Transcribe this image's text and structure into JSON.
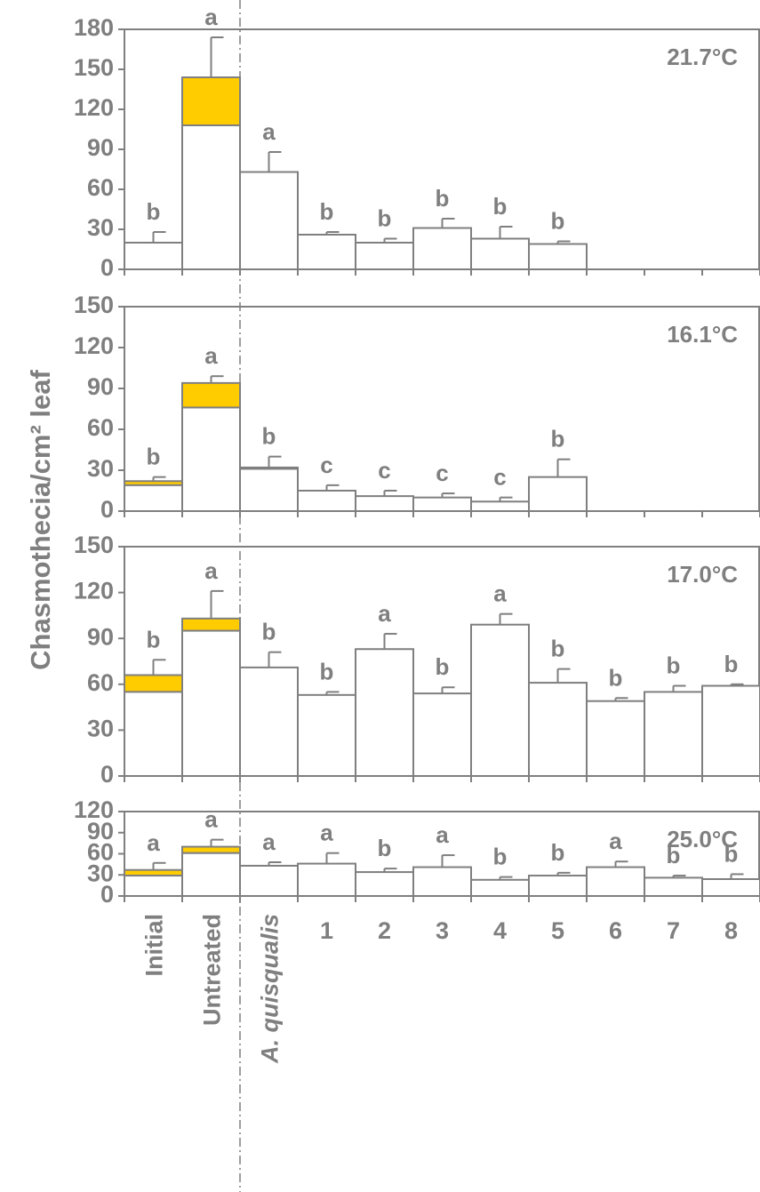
{
  "chart_data": {
    "type": "bar",
    "ylabel": "Chasmothecia/cm² leaf",
    "categories": [
      "Initial",
      "Untreated",
      "A. quisqualis",
      "1",
      "2",
      "3",
      "4",
      "5",
      "6",
      "7",
      "8"
    ],
    "colors": {
      "bar_fill": "#ffffff",
      "highlight_fill": "#ffcc00",
      "stroke": "#7f7f7f",
      "text": "#7f7f7f"
    },
    "panels": [
      {
        "label": "21.7°C",
        "ylim": [
          0,
          180
        ],
        "yticks": [
          "0",
          "30",
          "60",
          "90",
          "120",
          "150",
          "180"
        ],
        "values": [
          20,
          108,
          73,
          26,
          20,
          31,
          23,
          19,
          null,
          null,
          null
        ],
        "highlight_top": [
          null,
          144,
          null,
          null,
          null,
          null,
          null,
          null,
          null,
          null,
          null
        ],
        "errors": [
          8,
          30,
          15,
          2,
          3,
          7,
          9,
          2,
          null,
          null,
          null
        ],
        "letters": [
          "b",
          "a",
          "a",
          "b",
          "b",
          "b",
          "b",
          "b",
          "",
          "",
          ""
        ]
      },
      {
        "label": "16.1°C",
        "ylim": [
          0,
          150
        ],
        "yticks": [
          "0",
          "30",
          "60",
          "90",
          "120",
          "150"
        ],
        "values": [
          19,
          76,
          31,
          15,
          11,
          10,
          7,
          25,
          null,
          null,
          null
        ],
        "highlight_top": [
          22,
          94,
          32,
          null,
          null,
          null,
          null,
          null,
          null,
          null,
          null
        ],
        "errors": [
          3,
          5,
          8,
          4,
          4,
          3,
          3,
          13,
          null,
          null,
          null
        ],
        "letters": [
          "b",
          "a",
          "b",
          "c",
          "c",
          "c",
          "c",
          "b",
          "",
          "",
          ""
        ]
      },
      {
        "label": "17.0°C",
        "ylim": [
          0,
          150
        ],
        "yticks": [
          "0",
          "30",
          "60",
          "90",
          "120",
          "150"
        ],
        "values": [
          55,
          95,
          71,
          53,
          83,
          54,
          99,
          61,
          49,
          55,
          59
        ],
        "highlight_top": [
          66,
          103,
          null,
          null,
          null,
          null,
          null,
          null,
          null,
          null,
          null
        ],
        "errors": [
          10,
          18,
          10,
          2,
          10,
          4,
          7,
          9,
          2,
          4,
          1
        ],
        "letters": [
          "b",
          "a",
          "b",
          "b",
          "a",
          "b",
          "a",
          "b",
          "b",
          "b",
          "b"
        ]
      },
      {
        "label": "25.0°C",
        "ylim": [
          0,
          120
        ],
        "yticks": [
          "0",
          "30",
          "60",
          "90",
          "120"
        ],
        "values": [
          29,
          61,
          43,
          46,
          34,
          41,
          23,
          29,
          41,
          26,
          24
        ],
        "highlight_top": [
          37,
          70,
          null,
          null,
          null,
          null,
          null,
          null,
          null,
          null,
          null
        ],
        "errors": [
          10,
          10,
          5,
          15,
          5,
          17,
          4,
          4,
          8,
          3,
          7
        ],
        "letters": [
          "a",
          "a",
          "a",
          "a",
          "b",
          "a",
          "b",
          "b",
          "a",
          "b",
          "b"
        ]
      }
    ]
  }
}
